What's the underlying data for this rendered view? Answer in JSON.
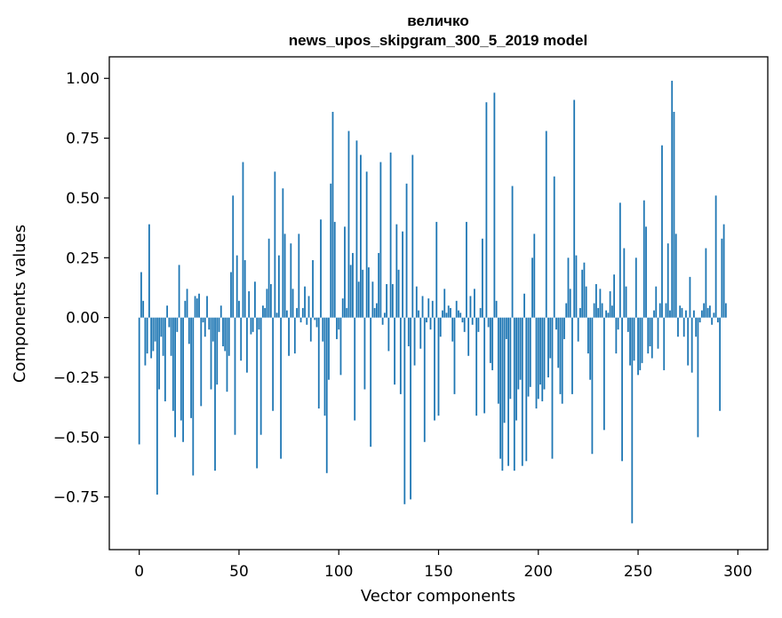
{
  "chart_data": {
    "type": "bar",
    "title_line1": "величко",
    "title_line2": "news_upos_skipgram_300_5_2019 model",
    "xlabel": "Vector components",
    "ylabel": "Components values",
    "xlim": [
      -15,
      315
    ],
    "ylim": [
      -0.97,
      1.09
    ],
    "xticks": [
      0,
      50,
      100,
      150,
      200,
      250,
      300
    ],
    "xtick_labels": [
      "0",
      "50",
      "100",
      "150",
      "200",
      "250",
      "300"
    ],
    "yticks": [
      -0.75,
      -0.5,
      -0.25,
      0.0,
      0.25,
      0.5,
      0.75,
      1.0
    ],
    "ytick_labels": [
      "−0.75",
      "−0.50",
      "−0.25",
      "0.00",
      "0.25",
      "0.50",
      "0.75",
      "1.00"
    ],
    "bar_color": "#1f77b4",
    "values": [
      -0.53,
      0.19,
      0.07,
      -0.2,
      -0.15,
      0.39,
      -0.17,
      -0.14,
      -0.1,
      -0.74,
      -0.3,
      -0.08,
      -0.16,
      -0.35,
      0.05,
      -0.04,
      -0.16,
      -0.39,
      -0.5,
      -0.06,
      0.22,
      -0.43,
      -0.52,
      0.07,
      0.12,
      -0.11,
      -0.42,
      -0.66,
      0.09,
      0.08,
      0.1,
      -0.37,
      -0.02,
      -0.08,
      0.09,
      -0.05,
      -0.3,
      -0.1,
      -0.64,
      -0.28,
      -0.06,
      0.05,
      -0.12,
      -0.14,
      -0.31,
      -0.16,
      0.19,
      0.51,
      -0.49,
      0.26,
      0.07,
      -0.18,
      0.65,
      0.24,
      -0.23,
      0.11,
      -0.07,
      -0.06,
      0.15,
      -0.63,
      -0.05,
      -0.49,
      0.05,
      0.04,
      0.12,
      0.33,
      0.14,
      -0.39,
      0.61,
      0.02,
      0.26,
      -0.59,
      0.54,
      0.35,
      0.03,
      -0.16,
      0.31,
      0.12,
      -0.15,
      0.04,
      0.35,
      -0.02,
      0.04,
      0.13,
      -0.03,
      0.09,
      -0.1,
      0.24,
      -0.01,
      -0.04,
      -0.38,
      0.41,
      -0.1,
      -0.41,
      -0.65,
      -0.26,
      0.56,
      0.86,
      0.4,
      -0.09,
      -0.05,
      -0.24,
      0.08,
      0.38,
      0.04,
      0.78,
      0.22,
      0.27,
      -0.43,
      0.74,
      0.15,
      0.68,
      0.2,
      -0.3,
      0.61,
      0.21,
      -0.54,
      0.15,
      0.04,
      0.06,
      0.27,
      0.65,
      -0.03,
      0.02,
      0.14,
      -0.14,
      0.69,
      0.14,
      -0.28,
      0.39,
      0.2,
      -0.32,
      0.36,
      -0.78,
      0.56,
      -0.12,
      -0.76,
      0.68,
      -0.2,
      0.13,
      0.03,
      -0.13,
      0.09,
      -0.52,
      -0.02,
      0.08,
      -0.05,
      0.07,
      -0.43,
      0.4,
      -0.41,
      -0.08,
      0.03,
      0.12,
      0.02,
      0.05,
      0.04,
      -0.1,
      -0.32,
      0.07,
      0.03,
      0.02,
      -0.02,
      -0.06,
      0.4,
      -0.16,
      0.09,
      -0.03,
      0.12,
      -0.41,
      -0.06,
      0.04,
      0.33,
      -0.4,
      0.9,
      -0.04,
      -0.19,
      -0.22,
      0.94,
      0.07,
      -0.36,
      -0.59,
      -0.64,
      -0.44,
      -0.09,
      -0.62,
      -0.34,
      0.55,
      -0.64,
      -0.43,
      -0.3,
      -0.26,
      -0.62,
      0.1,
      -0.6,
      -0.33,
      -0.29,
      0.25,
      0.35,
      -0.38,
      -0.34,
      -0.28,
      -0.35,
      -0.3,
      0.78,
      -0.25,
      -0.17,
      -0.59,
      0.59,
      -0.05,
      -0.21,
      -0.32,
      -0.36,
      -0.09,
      0.06,
      0.25,
      0.12,
      -0.32,
      0.91,
      0.26,
      -0.1,
      0.04,
      0.2,
      0.23,
      0.13,
      -0.15,
      -0.26,
      -0.57,
      0.06,
      0.14,
      0.04,
      0.12,
      0.06,
      -0.47,
      0.03,
      0.02,
      0.11,
      0.05,
      0.18,
      -0.15,
      -0.05,
      0.48,
      -0.6,
      0.29,
      0.13,
      -0.06,
      -0.2,
      -0.86,
      -0.18,
      0.25,
      -0.24,
      -0.22,
      -0.19,
      0.49,
      0.38,
      -0.15,
      -0.12,
      -0.17,
      0.03,
      0.13,
      -0.13,
      0.06,
      0.72,
      -0.22,
      0.06,
      0.31,
      0.03,
      0.99,
      0.86,
      0.35,
      -0.08,
      0.05,
      0.04,
      -0.08,
      0.03,
      -0.2,
      0.17,
      -0.23,
      0.03,
      -0.08,
      -0.5,
      -0.02,
      0.03,
      0.06,
      0.29,
      0.04,
      0.05,
      -0.03,
      0.02,
      0.51,
      -0.02,
      -0.39,
      0.33,
      0.39,
      0.06
    ]
  }
}
